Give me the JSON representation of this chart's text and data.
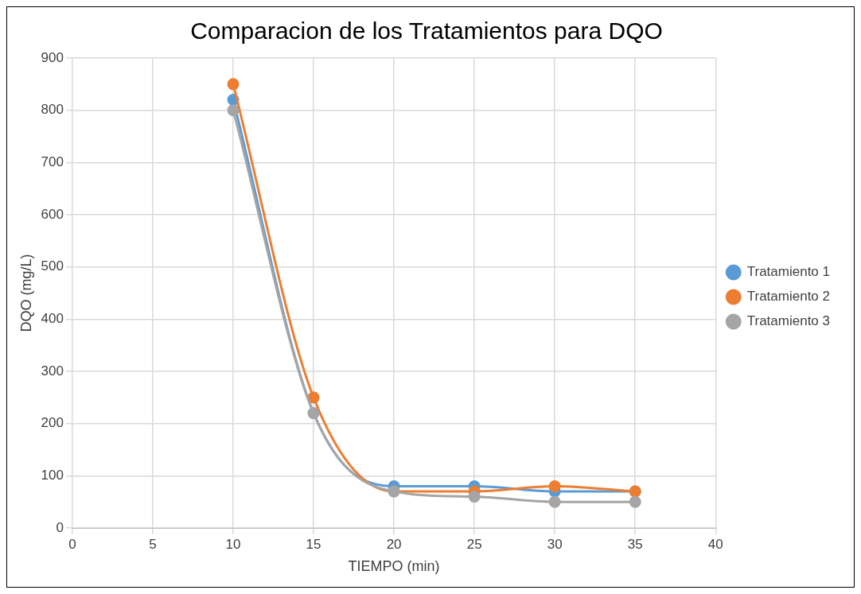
{
  "chart_data": {
    "type": "line",
    "title": "Comparacion de los Tratamientos para DQO",
    "xlabel": "TIEMPO (min)",
    "ylabel": "DQO (mg/L)",
    "x": [
      10,
      15,
      20,
      25,
      30,
      35
    ],
    "series": [
      {
        "name": "Tratamiento 1",
        "color": "#5b9bd5",
        "values": [
          820,
          220,
          80,
          80,
          70,
          70
        ]
      },
      {
        "name": "Tratamiento 2",
        "color": "#ed7d31",
        "values": [
          850,
          250,
          70,
          70,
          80,
          70
        ]
      },
      {
        "name": "Tratamiento 3",
        "color": "#a5a5a5",
        "values": [
          800,
          220,
          70,
          60,
          50,
          50
        ]
      }
    ],
    "xlim": [
      0,
      40
    ],
    "xticks": [
      0,
      5,
      10,
      15,
      20,
      25,
      30,
      35,
      40
    ],
    "ylim": [
      0,
      900
    ],
    "yticks": [
      0,
      100,
      200,
      300,
      400,
      500,
      600,
      700,
      800,
      900
    ],
    "grid": true,
    "legend": "right",
    "marker": "circle",
    "line_style": "solid"
  }
}
